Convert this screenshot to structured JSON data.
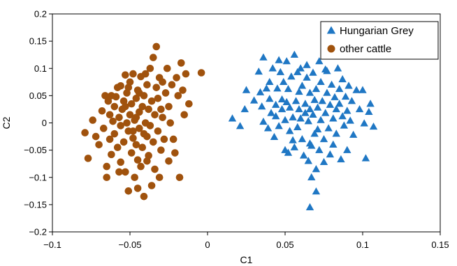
{
  "chart_data": {
    "type": "scatter",
    "xlabel": "C1",
    "ylabel": "C2",
    "xlim": [
      -0.1,
      0.15
    ],
    "ylim": [
      -0.2,
      0.2
    ],
    "x_ticks": [
      -0.1,
      -0.05,
      0,
      0.05,
      0.1,
      0.15
    ],
    "x_tick_labels": [
      "−0.1",
      "−0.05",
      "0",
      "0.05",
      "0.1",
      "0.15"
    ],
    "y_ticks": [
      -0.2,
      -0.15,
      -0.1,
      -0.05,
      0,
      0.05,
      0.1,
      0.15,
      0.2
    ],
    "y_tick_labels": [
      "−0.2",
      "−0.15",
      "−0.1",
      "−0.05",
      "0",
      "0.05",
      "0.1",
      "0.15",
      "0.2"
    ],
    "grid": false,
    "legend_position": "top-right",
    "series": [
      {
        "name": "Hungarian Grey",
        "marker": "triangle",
        "color": "#1f77c4",
        "points": [
          [
            0.016,
            0.008
          ],
          [
            0.021,
            -0.006
          ],
          [
            0.024,
            0.025
          ],
          [
            0.025,
            0.06
          ],
          [
            0.03,
            0.041
          ],
          [
            0.033,
            0.094
          ],
          [
            0.034,
            0.056
          ],
          [
            0.035,
            0.03
          ],
          [
            0.036,
            0.002
          ],
          [
            0.036,
            0.12
          ],
          [
            0.038,
            0.063
          ],
          [
            0.039,
            -0.01
          ],
          [
            0.04,
            0.075
          ],
          [
            0.04,
            0.044
          ],
          [
            0.041,
            0.018
          ],
          [
            0.042,
            0.1
          ],
          [
            0.043,
            -0.026
          ],
          [
            0.044,
            0.033
          ],
          [
            0.044,
            0.012
          ],
          [
            0.045,
            0.063
          ],
          [
            0.046,
            -0.006
          ],
          [
            0.047,
            0.093
          ],
          [
            0.048,
            0.043
          ],
          [
            0.048,
            0.025
          ],
          [
            0.049,
            0.075
          ],
          [
            0.05,
            -0.05
          ],
          [
            0.05,
            0.005
          ],
          [
            0.051,
            0.113
          ],
          [
            0.051,
            0.038
          ],
          [
            0.052,
            0.062
          ],
          [
            0.053,
            0.028
          ],
          [
            0.053,
            -0.015
          ],
          [
            0.054,
            0.085
          ],
          [
            0.055,
            -0.032
          ],
          [
            0.055,
            0.01
          ],
          [
            0.056,
            0.125
          ],
          [
            0.057,
            0.04
          ],
          [
            0.058,
            0.093
          ],
          [
            0.058,
            -0.008
          ],
          [
            0.059,
            0.057
          ],
          [
            0.059,
            0.025
          ],
          [
            0.06,
            0.008
          ],
          [
            0.061,
            -0.03
          ],
          [
            0.061,
            0.068
          ],
          [
            0.062,
            -0.06
          ],
          [
            0.063,
            0.035
          ],
          [
            0.063,
            0.018
          ],
          [
            0.064,
            0.106
          ],
          [
            0.064,
            0.083
          ],
          [
            0.065,
            -0.07
          ],
          [
            0.065,
            0.003
          ],
          [
            0.066,
            0.025
          ],
          [
            0.066,
            0.055
          ],
          [
            0.067,
            -0.042
          ],
          [
            0.067,
            -0.1
          ],
          [
            0.068,
            0.092
          ],
          [
            0.068,
            0.015
          ],
          [
            0.069,
            0.042
          ],
          [
            0.069,
            -0.02
          ],
          [
            0.07,
            -0.085
          ],
          [
            0.07,
            0.062
          ],
          [
            0.071,
            0.028
          ],
          [
            0.072,
            0.113
          ],
          [
            0.072,
            -0.05
          ],
          [
            0.073,
            0.005
          ],
          [
            0.073,
            0.075
          ],
          [
            0.074,
            0.04
          ],
          [
            0.075,
            -0.03
          ],
          [
            0.075,
            -0.072
          ],
          [
            0.076,
            0.018
          ],
          [
            0.077,
            0.055
          ],
          [
            0.077,
            0.095
          ],
          [
            0.078,
            -0.01
          ],
          [
            0.079,
            0.033
          ],
          [
            0.079,
            -0.058
          ],
          [
            0.08,
            0.07
          ],
          [
            0.081,
            0.008
          ],
          [
            0.081,
            -0.04
          ],
          [
            0.082,
            0.047
          ],
          [
            0.083,
            0.025
          ],
          [
            0.083,
            -0.02
          ],
          [
            0.084,
            0.1
          ],
          [
            0.085,
            0.062
          ],
          [
            0.085,
            0.035
          ],
          [
            0.086,
            -0.067
          ],
          [
            0.087,
            0.012
          ],
          [
            0.087,
            0.08
          ],
          [
            0.088,
            -0.005
          ],
          [
            0.089,
            0.048
          ],
          [
            0.09,
            0.022
          ],
          [
            0.09,
            -0.05
          ],
          [
            0.091,
            0.068
          ],
          [
            0.092,
            0.004
          ],
          [
            0.093,
            0.04
          ],
          [
            0.094,
            -0.022
          ],
          [
            0.096,
            0.06
          ],
          [
            0.098,
            0.025
          ],
          [
            0.1,
            0.06
          ],
          [
            0.101,
            -0.001
          ],
          [
            0.102,
            -0.065
          ],
          [
            0.104,
            0.02
          ],
          [
            0.105,
            0.035
          ],
          [
            0.107,
            -0.007
          ],
          [
            0.06,
            0.1
          ],
          [
            0.046,
            0.115
          ],
          [
            0.066,
            -0.038
          ],
          [
            0.056,
            -0.045
          ],
          [
            0.071,
            -0.012
          ],
          [
            0.052,
            -0.055
          ],
          [
            0.076,
            0.098
          ],
          [
            0.066,
            -0.155
          ],
          [
            0.07,
            -0.126
          ]
        ]
      },
      {
        "name": "other cattle",
        "marker": "circle",
        "color": "#a0520d",
        "points": [
          [
            -0.079,
            -0.018
          ],
          [
            -0.077,
            -0.065
          ],
          [
            -0.074,
            0.005
          ],
          [
            -0.072,
            -0.025
          ],
          [
            -0.07,
            -0.04
          ],
          [
            -0.068,
            0.022
          ],
          [
            -0.067,
            -0.01
          ],
          [
            -0.066,
            0.05
          ],
          [
            -0.065,
            -0.08
          ],
          [
            -0.065,
            -0.1
          ],
          [
            -0.064,
            0.04
          ],
          [
            -0.063,
            0.015
          ],
          [
            -0.063,
            -0.03
          ],
          [
            -0.062,
            -0.058
          ],
          [
            -0.061,
            0.003
          ],
          [
            -0.06,
            0.03
          ],
          [
            -0.06,
            -0.02
          ],
          [
            -0.059,
            0.048
          ],
          [
            -0.058,
            -0.045
          ],
          [
            -0.058,
            0.065
          ],
          [
            -0.057,
            0.01
          ],
          [
            -0.056,
            -0.005
          ],
          [
            -0.056,
            -0.072
          ],
          [
            -0.055,
            0.025
          ],
          [
            -0.054,
            0.04
          ],
          [
            -0.054,
            -0.035
          ],
          [
            -0.053,
            0.088
          ],
          [
            -0.053,
            -0.09
          ],
          [
            -0.052,
            0.055
          ],
          [
            -0.052,
            0.0
          ],
          [
            -0.051,
            -0.015
          ],
          [
            -0.051,
            -0.125
          ],
          [
            -0.05,
            0.015
          ],
          [
            -0.05,
            0.075
          ],
          [
            -0.049,
            -0.055
          ],
          [
            -0.049,
            0.035
          ],
          [
            -0.048,
            -0.028
          ],
          [
            -0.048,
            0.09
          ],
          [
            -0.047,
            0.005
          ],
          [
            -0.047,
            -0.1
          ],
          [
            -0.046,
            0.045
          ],
          [
            -0.046,
            -0.04
          ],
          [
            -0.045,
            0.06
          ],
          [
            -0.045,
            -0.068
          ],
          [
            -0.044,
            0.02
          ],
          [
            -0.044,
            -0.01
          ],
          [
            -0.043,
            0.085
          ],
          [
            -0.043,
            -0.08
          ],
          [
            -0.042,
            0.03
          ],
          [
            -0.042,
            -0.045
          ],
          [
            -0.041,
            0.05
          ],
          [
            -0.041,
            -0.135
          ],
          [
            -0.04,
            0.0
          ],
          [
            -0.04,
            0.09
          ],
          [
            -0.039,
            -0.025
          ],
          [
            -0.039,
            0.07
          ],
          [
            -0.038,
            -0.06
          ],
          [
            -0.038,
            0.025
          ],
          [
            -0.037,
            0.1
          ],
          [
            -0.037,
            -0.005
          ],
          [
            -0.036,
            -0.115
          ],
          [
            -0.036,
            0.04
          ],
          [
            -0.035,
            0.12
          ],
          [
            -0.035,
            -0.035
          ],
          [
            -0.034,
            0.015
          ],
          [
            -0.034,
            -0.085
          ],
          [
            -0.033,
            0.065
          ],
          [
            -0.033,
            0.14
          ],
          [
            -0.032,
            -0.015
          ],
          [
            -0.032,
            0.045
          ],
          [
            -0.031,
            -0.1
          ],
          [
            -0.031,
            0.083
          ],
          [
            -0.03,
            0.025
          ],
          [
            -0.03,
            -0.05
          ],
          [
            -0.029,
            0.01
          ],
          [
            -0.029,
            0.075
          ],
          [
            -0.028,
            -0.03
          ],
          [
            -0.027,
            0.055
          ],
          [
            -0.026,
            0.1
          ],
          [
            -0.025,
            -0.07
          ],
          [
            -0.025,
            0.03
          ],
          [
            -0.024,
            0.0
          ],
          [
            -0.023,
            0.07
          ],
          [
            -0.022,
            -0.03
          ],
          [
            -0.021,
            -0.055
          ],
          [
            -0.02,
            0.083
          ],
          [
            -0.019,
            0.05
          ],
          [
            -0.018,
            -0.1
          ],
          [
            -0.017,
            0.11
          ],
          [
            -0.016,
            0.06
          ],
          [
            -0.015,
            0.015
          ],
          [
            -0.014,
            0.09
          ],
          [
            -0.012,
            0.035
          ],
          [
            -0.004,
            0.092
          ],
          [
            -0.056,
            0.068
          ],
          [
            -0.062,
            0.05
          ],
          [
            -0.048,
            -0.015
          ],
          [
            -0.044,
            0.055
          ],
          [
            -0.053,
            0.03
          ],
          [
            -0.039,
            -0.07
          ],
          [
            -0.045,
            -0.12
          ],
          [
            -0.051,
            0.065
          ],
          [
            -0.057,
            -0.09
          ],
          [
            -0.046,
            0.01
          ],
          [
            -0.041,
            -0.02
          ]
        ]
      }
    ]
  }
}
